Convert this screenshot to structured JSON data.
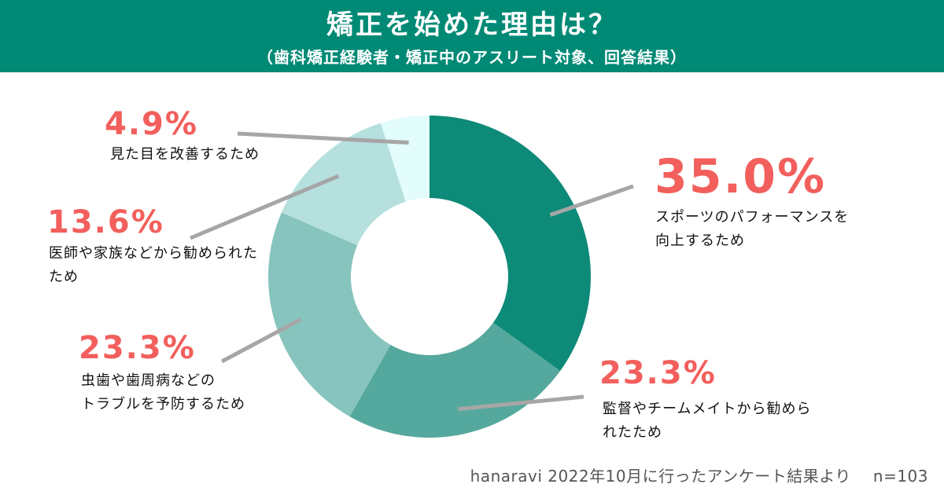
{
  "header": {
    "title": "矯正を始めた理由は？",
    "subtitle": "（歯科矯正経験者・矯正中のアスリート対象、回答結果）"
  },
  "chart_data": {
    "type": "pie",
    "donut": true,
    "title": "矯正を始めた理由は？",
    "subtitle": "（歯科矯正経験者・矯正中のアスリート対象、回答結果）",
    "categories": [
      "スポーツのパフォーマンスを向上するため",
      "監督やチームメイトから勧められたため",
      "虫歯や歯周病などのトラブルを予防するため",
      "医師や家族などから勧められたため",
      "見た目を改善するため"
    ],
    "values": [
      35.0,
      23.3,
      23.3,
      13.6,
      4.9
    ],
    "value_labels": [
      "35.0%",
      "23.3%",
      "23.3%",
      "13.6%",
      "4.9%"
    ],
    "colors": [
      "#0e8a78",
      "#55a89d",
      "#87c4be",
      "#b5e0de",
      "#e3fcfc"
    ],
    "label_lines": [
      [
        "スポーツのパフォーマンスを",
        "向上するため"
      ],
      [
        "監督やチームメイトから勧めら",
        "れたため"
      ],
      [
        "虫歯や歯周病などの",
        "トラブルを予防するため"
      ],
      [
        "医師や家族などから勧められた",
        "ため"
      ],
      [
        "見た目を改善するため"
      ]
    ]
  },
  "footer": {
    "source": "hanaravi 2022年10月に行ったアンケート結果より",
    "n": "n=103"
  }
}
